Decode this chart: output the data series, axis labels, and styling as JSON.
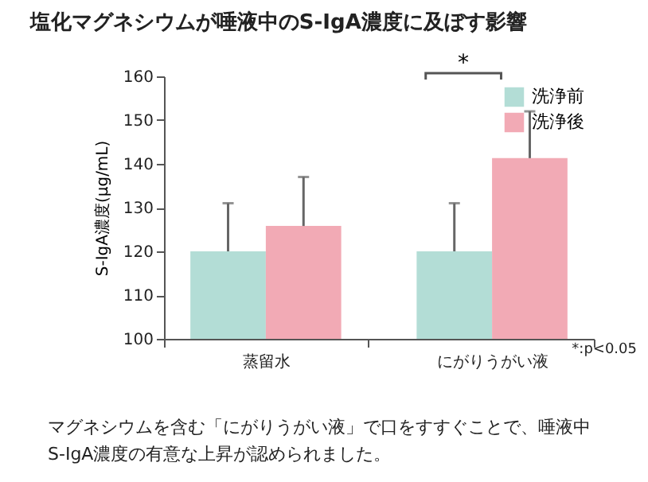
{
  "chart_data": {
    "type": "bar",
    "title": "塩化マグネシウムが唾液中のS-IgA濃度に及ぼす影響",
    "ylabel": "S-IgA濃度(μg/mL)",
    "categories": [
      "蒸留水",
      "にがりうがい液"
    ],
    "series": [
      {
        "name": "洗浄前",
        "color": "#b3ddd6",
        "values": [
          120,
          120
        ],
        "errors": [
          [
            120,
            131
          ],
          [
            120,
            131
          ]
        ]
      },
      {
        "name": "洗浄後",
        "color": "#f2aab5",
        "values": [
          125.8,
          141.3
        ],
        "errors": [
          [
            125.8,
            137
          ],
          [
            141.3,
            152
          ]
        ]
      }
    ],
    "ylim": [
      100,
      160
    ],
    "yticks": [
      100,
      110,
      120,
      130,
      140,
      150,
      160
    ],
    "grid": false,
    "legend": "top right",
    "annotations": [
      "*",
      "*:p<0.05",
      "マグネシウムを含む「にがりうがい液」で口をすすぐことで、唾液中S-IgA濃度の有意な上昇が認められました。"
    ]
  }
}
